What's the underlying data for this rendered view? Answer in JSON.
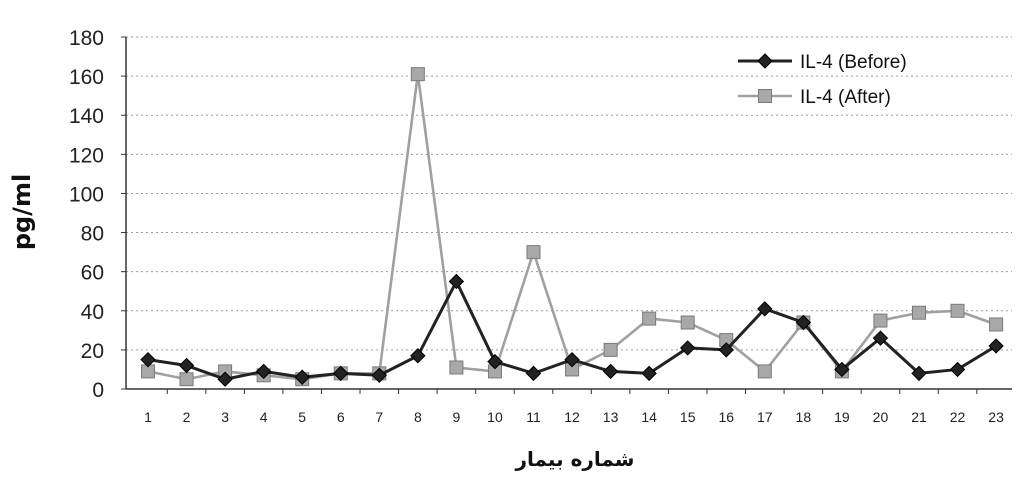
{
  "chart_data": {
    "type": "line",
    "ylabel": "pg/ml",
    "xlabel": "شماره بیمار",
    "categories": [
      "1",
      "2",
      "3",
      "4",
      "5",
      "6",
      "7",
      "8",
      "9",
      "10",
      "11",
      "12",
      "13",
      "14",
      "15",
      "16",
      "17",
      "18",
      "19",
      "20",
      "21",
      "22",
      "23"
    ],
    "ylim": [
      0,
      180
    ],
    "yticks": [
      0,
      20,
      40,
      60,
      80,
      100,
      120,
      140,
      160,
      180
    ],
    "grid": true,
    "legend_position": "top-right",
    "series": [
      {
        "name": "IL-4 (Before)",
        "color": "#222222",
        "marker": "diamond",
        "values": [
          15,
          12,
          5,
          9,
          6,
          8,
          7,
          17,
          55,
          14,
          8,
          15,
          9,
          8,
          21,
          20,
          41,
          34,
          10,
          26,
          8,
          10,
          22
        ]
      },
      {
        "name": "IL-4 (After)",
        "color": "#a0a0a0",
        "marker": "square",
        "values": [
          9,
          5,
          9,
          7,
          5,
          8,
          8,
          161,
          11,
          9,
          70,
          10,
          20,
          36,
          34,
          25,
          9,
          34,
          9,
          35,
          39,
          40,
          33
        ]
      }
    ]
  }
}
